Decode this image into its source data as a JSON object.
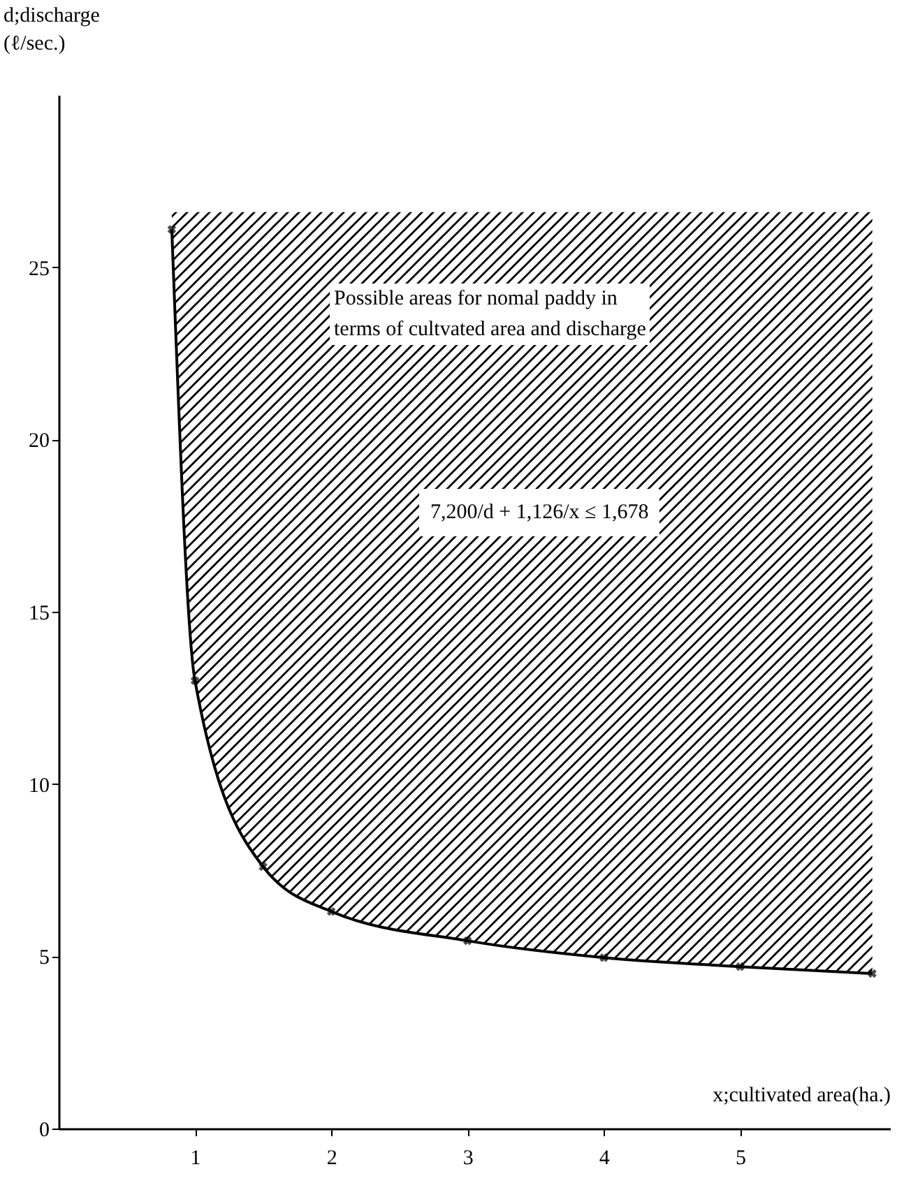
{
  "chart_data": {
    "type": "line",
    "xlabel": "x;cultivated area(ha.)",
    "ylabel": "d;discharge\n(ℓ/sec.)",
    "x": [
      0.83,
      1,
      1.5,
      2,
      3,
      4,
      5,
      5.97
    ],
    "series": [
      {
        "color": "#000000",
        "values": [
          26.1,
          13.0,
          7.6,
          6.3,
          5.45,
          4.96,
          4.7,
          4.5
        ],
        "lower": [
          26.1,
          13.0,
          7.6,
          6.3,
          5.45,
          4.96,
          4.7,
          4.5
        ],
        "upper": [
          26.6,
          26.6,
          26.6,
          26.6,
          26.6,
          26.6,
          26.6,
          26.6
        ]
      }
    ],
    "xlim": [
      0,
      6.1
    ],
    "xticks": [
      1,
      2,
      3,
      4,
      5
    ],
    "ylim": [
      0,
      30
    ],
    "yticks": [
      0,
      5,
      10,
      15,
      20,
      25
    ],
    "grid": false,
    "marker": "cross",
    "line_style": "solid",
    "annotations": [
      "Possible areas for nomal paddy in\nterms of cultvated area and discharge",
      "7,200/d + 1,126/x ≤ 1,678"
    ]
  }
}
